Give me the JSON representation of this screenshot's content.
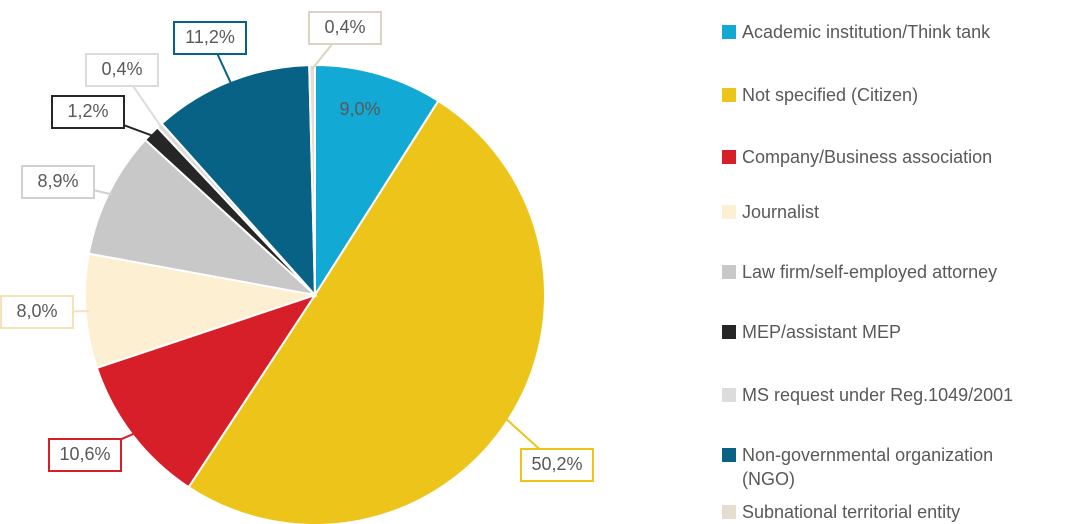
{
  "chart_data": {
    "type": "pie",
    "categories": [
      "Academic institution/Think tank",
      "Not specified (Citizen)",
      "Company/Business association",
      "Journalist",
      "Law firm/self-employed attorney",
      "MEP/assistant MEP",
      "MS request under Reg.1049/2001",
      "Non-governmental organization (NGO)",
      "Subnational territorial entity"
    ],
    "values": [
      9.0,
      50.2,
      10.6,
      8.0,
      8.9,
      1.2,
      0.4,
      11.2,
      0.4
    ],
    "value_labels": [
      "9,0%",
      "50,2%",
      "10,6%",
      "8,0%",
      "8,9%",
      "1,2%",
      "0,4%",
      "11,2%",
      "0,4%"
    ],
    "colors": [
      "#12a9d4",
      "#edc51a",
      "#d71f2a",
      "#fdf0d2",
      "#c8c8c8",
      "#262626",
      "#dcdcdc",
      "#086286",
      "#e5ddd0"
    ],
    "legend": "right"
  }
}
